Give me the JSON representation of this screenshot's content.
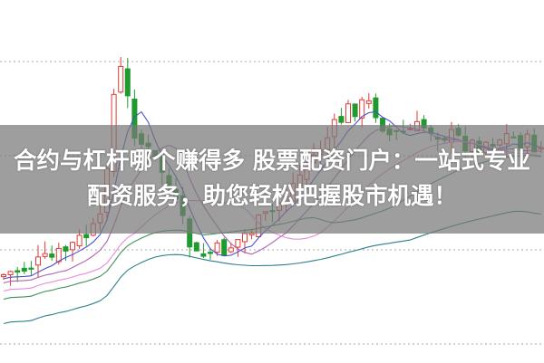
{
  "banner": {
    "title": "合约与杠杆哪个赚得多 股票配资门户：一站式专业配资服务，助您轻松把握股市机遇！"
  }
}
